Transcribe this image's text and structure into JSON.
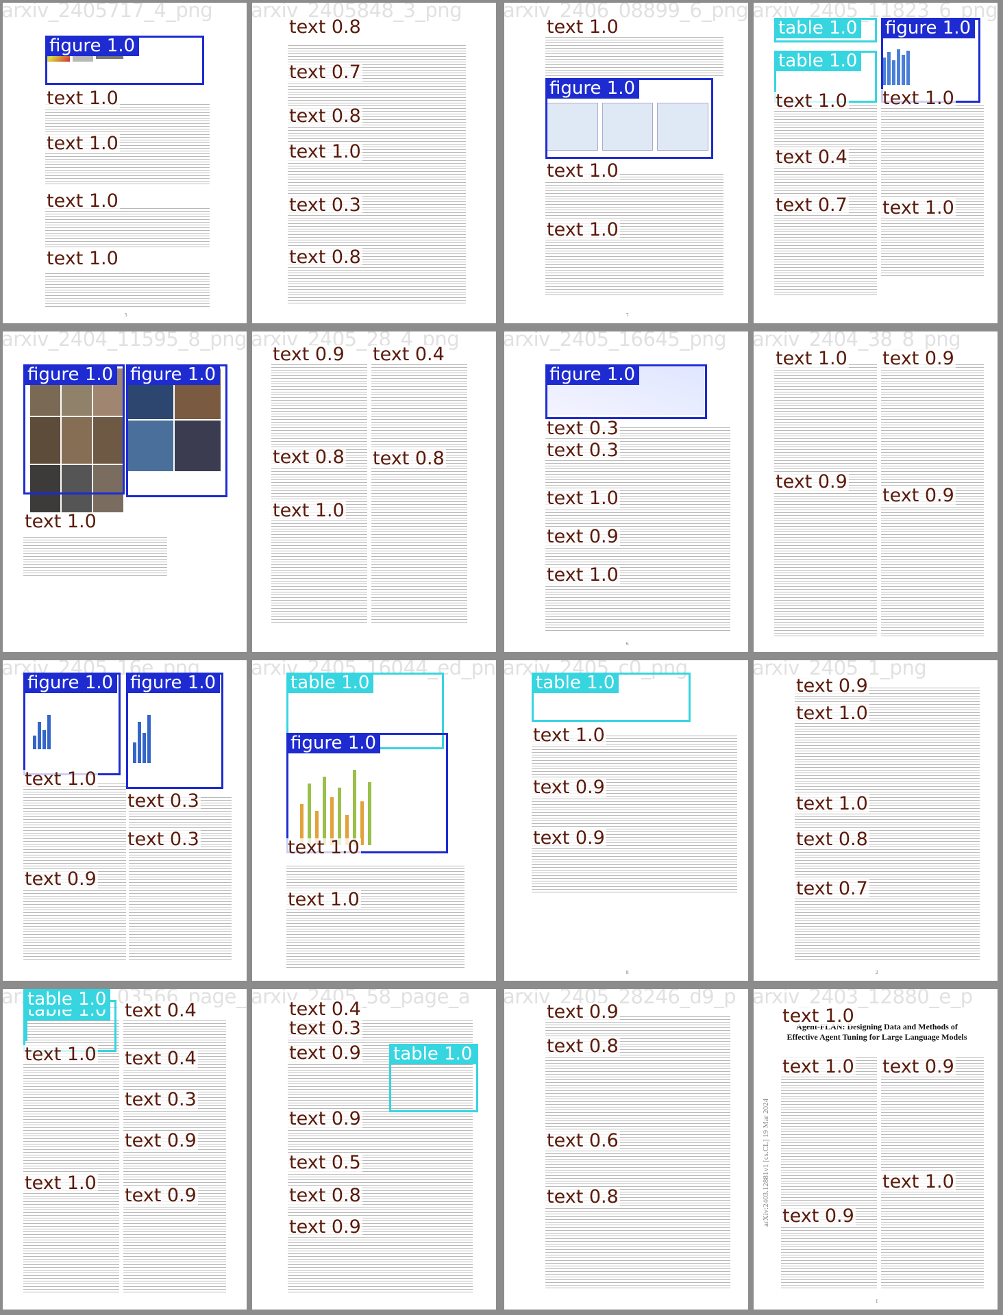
{
  "tiles": [
    {
      "watermark": "arxiv_2405717_4_png",
      "page_num": "5",
      "figures": [
        {
          "label": "figure 1.0"
        }
      ],
      "texts": [
        {
          "label": "text 1.0"
        },
        {
          "label": "text 1.0"
        },
        {
          "label": "text 1.0"
        },
        {
          "label": "text 1.0"
        }
      ]
    },
    {
      "watermark": "arxiv_2405848_3_png",
      "page_num": "",
      "texts": [
        {
          "label": "text 0.8"
        },
        {
          "label": "text 0.7"
        },
        {
          "label": "text 0.8"
        },
        {
          "label": "text 1.0"
        },
        {
          "label": "text 0.3"
        },
        {
          "label": "text 0.8"
        }
      ]
    },
    {
      "watermark": "arxiv_2406_08899_6_png",
      "page_num": "7",
      "figures": [
        {
          "label": "figure 1.0"
        }
      ],
      "texts": [
        {
          "label": "text 1.0"
        },
        {
          "label": "text 1.0"
        },
        {
          "label": "text 1.0"
        }
      ]
    },
    {
      "watermark": "arxiv_2405_11823_6_png",
      "page_num": "",
      "figures": [
        {
          "label": "figure 1.0"
        }
      ],
      "tables": [
        {
          "label": "table 1.0"
        },
        {
          "label": "table 1.0"
        }
      ],
      "texts": [
        {
          "label": "text 1.0"
        },
        {
          "label": "text 1.0"
        },
        {
          "label": "text 0.4"
        },
        {
          "label": "text 0.7"
        },
        {
          "label": "text 1.0"
        }
      ]
    },
    {
      "watermark": "arxiv_2404_11595_8_png",
      "page_num": "",
      "figures": [
        {
          "label": "figure 1.0"
        },
        {
          "label": "figure 1.0"
        }
      ],
      "texts": [
        {
          "label": "text 1.0"
        }
      ]
    },
    {
      "watermark": "arxiv_2405_28_4_png",
      "page_num": "",
      "texts": [
        {
          "label": "text 0.9"
        },
        {
          "label": "text 0.4"
        },
        {
          "label": "text 0.8"
        },
        {
          "label": "text 0.8"
        },
        {
          "label": "text 1.0"
        }
      ]
    },
    {
      "watermark": "arxiv_2405_16645_png",
      "page_num": "6",
      "figures": [
        {
          "label": "figure 1.0"
        }
      ],
      "texts": [
        {
          "label": "text 0.3"
        },
        {
          "label": "text 0.3"
        },
        {
          "label": "text 1.0"
        },
        {
          "label": "text 0.9"
        },
        {
          "label": "text 1.0"
        }
      ]
    },
    {
      "watermark": "arxiv_2404_38_8_png",
      "page_num": "",
      "texts": [
        {
          "label": "text 1.0"
        },
        {
          "label": "text 0.9"
        },
        {
          "label": "text 0.9"
        },
        {
          "label": "text 0.9"
        }
      ]
    },
    {
      "watermark": "arxiv_2405_16e_png",
      "page_num": "",
      "figures": [
        {
          "label": "figure 1.0"
        },
        {
          "label": "figure 1.0"
        }
      ],
      "texts": [
        {
          "label": "text 1.0"
        },
        {
          "label": "text 0.3"
        },
        {
          "label": "text 0.3"
        },
        {
          "label": "text 0.9"
        }
      ]
    },
    {
      "watermark": "arxiv_2405_16044_ed_png",
      "page_num": "",
      "figures": [
        {
          "label": "figure 1.0"
        }
      ],
      "tables": [
        {
          "label": "table 1.0"
        }
      ],
      "texts": [
        {
          "label": "text 1.0"
        },
        {
          "label": "text 1.0"
        }
      ]
    },
    {
      "watermark": "arxiv_2405_c0_png",
      "page_num": "8",
      "tables": [
        {
          "label": "table 1.0"
        }
      ],
      "texts": [
        {
          "label": "text 1.0"
        },
        {
          "label": "text 0.9"
        },
        {
          "label": "text 0.9"
        }
      ]
    },
    {
      "watermark": "arxiv_2405_1_png",
      "page_num": "2",
      "texts": [
        {
          "label": "text 0.9"
        },
        {
          "label": "text 1.0"
        },
        {
          "label": "text 1.0"
        },
        {
          "label": "text 0.8"
        },
        {
          "label": "text 0.7"
        }
      ]
    },
    {
      "watermark": "arxiv_2401_03566_page_a",
      "page_num": "",
      "tables": [
        {
          "label": "table 1.0"
        },
        {
          "label": "table 1.0"
        }
      ],
      "texts": [
        {
          "label": "text 0.4"
        },
        {
          "label": "text 1.0"
        },
        {
          "label": "text 0.4"
        },
        {
          "label": "text 0.3"
        },
        {
          "label": "text 1.0"
        },
        {
          "label": "text 0.9"
        },
        {
          "label": "text 0.9"
        }
      ]
    },
    {
      "watermark": "arxiv_2405_58_page_a",
      "page_num": "",
      "tables": [
        {
          "label": "table 1.0"
        }
      ],
      "texts": [
        {
          "label": "text 0.4"
        },
        {
          "label": "text 0.3"
        },
        {
          "label": "text 0.9"
        },
        {
          "label": "text 0.9"
        },
        {
          "label": "text 0.5"
        },
        {
          "label": "text 0.8"
        },
        {
          "label": "text 0.9"
        }
      ]
    },
    {
      "watermark": "arxiv_2405_28246_d9_p",
      "page_num": "",
      "texts": [
        {
          "label": "text 0.9"
        },
        {
          "label": "text 0.8"
        },
        {
          "label": "text 0.6"
        },
        {
          "label": "text 0.8"
        }
      ]
    },
    {
      "watermark": "arxiv_2403_12880_e_p",
      "page_num": "1",
      "title": "Agent-FLAN: Designing Data and Methods of Effective Agent Tuning for Large Language Models",
      "sidebar": "arXiv:2403.12881v1  [cs.CL]  19 Mar 2024",
      "texts": [
        {
          "label": "text 1.0"
        },
        {
          "label": "text 1.0"
        },
        {
          "label": "text 0.9"
        },
        {
          "label": "text 1.0"
        },
        {
          "label": "text 0.9"
        }
      ]
    }
  ]
}
